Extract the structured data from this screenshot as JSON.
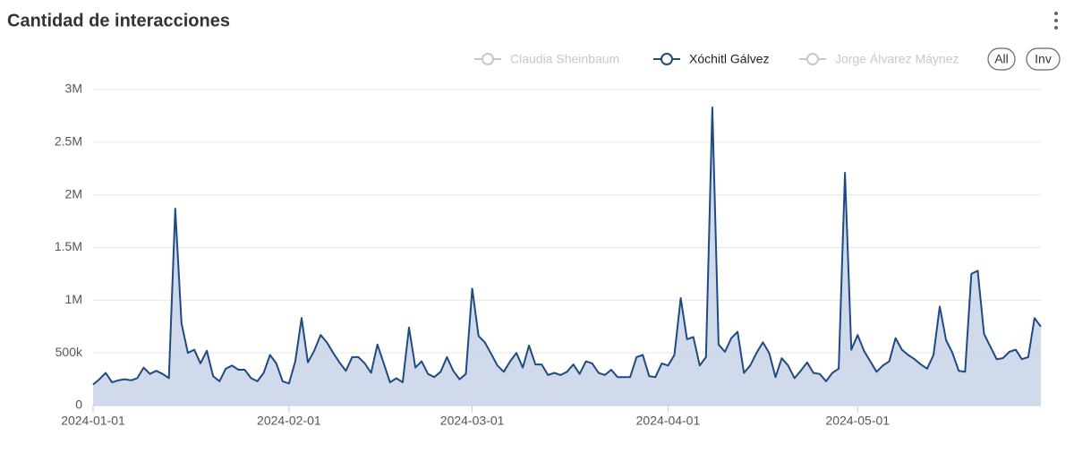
{
  "chart_data": {
    "type": "area",
    "title": "Cantidad de interacciones",
    "series": [
      {
        "name": "Claudia Sheinbaum",
        "visible": false
      },
      {
        "name": "Xóchitl Gálvez",
        "visible": true,
        "color": "#1f4a82",
        "fill": "#c9d3e8",
        "values": [
          200000,
          250000,
          310000,
          220000,
          240000,
          250000,
          240000,
          260000,
          360000,
          300000,
          330000,
          300000,
          260000,
          1870000,
          780000,
          500000,
          530000,
          400000,
          520000,
          280000,
          230000,
          350000,
          380000,
          340000,
          340000,
          260000,
          230000,
          310000,
          480000,
          400000,
          230000,
          210000,
          420000,
          830000,
          410000,
          520000,
          670000,
          600000,
          500000,
          410000,
          330000,
          460000,
          460000,
          400000,
          310000,
          580000,
          400000,
          220000,
          260000,
          220000,
          740000,
          360000,
          420000,
          300000,
          270000,
          320000,
          460000,
          330000,
          250000,
          300000,
          1110000,
          660000,
          600000,
          490000,
          380000,
          320000,
          420000,
          500000,
          360000,
          570000,
          390000,
          390000,
          290000,
          310000,
          290000,
          320000,
          390000,
          300000,
          420000,
          400000,
          310000,
          290000,
          340000,
          270000,
          270000,
          270000,
          460000,
          480000,
          280000,
          270000,
          400000,
          380000,
          480000,
          1020000,
          630000,
          650000,
          380000,
          460000,
          2830000,
          580000,
          510000,
          640000,
          700000,
          310000,
          380000,
          500000,
          600000,
          500000,
          270000,
          450000,
          380000,
          260000,
          330000,
          410000,
          310000,
          300000,
          230000,
          310000,
          350000,
          2210000,
          530000,
          670000,
          520000,
          420000,
          320000,
          380000,
          420000,
          640000,
          530000,
          480000,
          440000,
          390000,
          350000,
          480000,
          940000,
          620000,
          500000,
          330000,
          320000,
          1250000,
          1280000,
          680000,
          560000,
          440000,
          450000,
          510000,
          530000,
          440000,
          460000,
          830000,
          750000
        ]
      },
      {
        "name": "Jorge Álvarez Máynez",
        "visible": false
      }
    ],
    "x": [
      "2024-01-01",
      "2024-01-02",
      "2024-01-03",
      "2024-01-04",
      "2024-01-05",
      "2024-01-06",
      "2024-01-07",
      "2024-01-08",
      "2024-01-09",
      "2024-01-10",
      "2024-01-11",
      "2024-01-12",
      "2024-01-13",
      "2024-01-14",
      "2024-01-15",
      "2024-01-16",
      "2024-01-17",
      "2024-01-18",
      "2024-01-19",
      "2024-01-20",
      "2024-01-21",
      "2024-01-22",
      "2024-01-23",
      "2024-01-24",
      "2024-01-25",
      "2024-01-26",
      "2024-01-27",
      "2024-01-28",
      "2024-01-29",
      "2024-01-30",
      "2024-01-31",
      "2024-02-01",
      "2024-02-02",
      "2024-02-03",
      "2024-02-04",
      "2024-02-05",
      "2024-02-06",
      "2024-02-07",
      "2024-02-08",
      "2024-02-09",
      "2024-02-10",
      "2024-02-11",
      "2024-02-12",
      "2024-02-13",
      "2024-02-14",
      "2024-02-15",
      "2024-02-16",
      "2024-02-17",
      "2024-02-18",
      "2024-02-19",
      "2024-02-20",
      "2024-02-21",
      "2024-02-22",
      "2024-02-23",
      "2024-02-24",
      "2024-02-25",
      "2024-02-26",
      "2024-02-27",
      "2024-02-28",
      "2024-02-29",
      "2024-03-01",
      "2024-03-02",
      "2024-03-03",
      "2024-03-04",
      "2024-03-05",
      "2024-03-06",
      "2024-03-07",
      "2024-03-08",
      "2024-03-09",
      "2024-03-10",
      "2024-03-11",
      "2024-03-12",
      "2024-03-13",
      "2024-03-14",
      "2024-03-15",
      "2024-03-16",
      "2024-03-17",
      "2024-03-18",
      "2024-03-19",
      "2024-03-20",
      "2024-03-21",
      "2024-03-22",
      "2024-03-23",
      "2024-03-24",
      "2024-03-25",
      "2024-03-26",
      "2024-03-27",
      "2024-03-28",
      "2024-03-29",
      "2024-03-30",
      "2024-03-31",
      "2024-04-01",
      "2024-04-02",
      "2024-04-03",
      "2024-04-04",
      "2024-04-05",
      "2024-04-06",
      "2024-04-07",
      "2024-04-08",
      "2024-04-09",
      "2024-04-10",
      "2024-04-11",
      "2024-04-12",
      "2024-04-13",
      "2024-04-14",
      "2024-04-15",
      "2024-04-16",
      "2024-04-17",
      "2024-04-18",
      "2024-04-19",
      "2024-04-20",
      "2024-04-21",
      "2024-04-22",
      "2024-04-23",
      "2024-04-24",
      "2024-04-25",
      "2024-04-26",
      "2024-04-27",
      "2024-04-28",
      "2024-04-29",
      "2024-04-30",
      "2024-05-01",
      "2024-05-02",
      "2024-05-03",
      "2024-05-04",
      "2024-05-05",
      "2024-05-06",
      "2024-05-07",
      "2024-05-08",
      "2024-05-09",
      "2024-05-10",
      "2024-05-11",
      "2024-05-12",
      "2024-05-13",
      "2024-05-14",
      "2024-05-15",
      "2024-05-16",
      "2024-05-17",
      "2024-05-18",
      "2024-05-19",
      "2024-05-20",
      "2024-05-21",
      "2024-05-22",
      "2024-05-23",
      "2024-05-24",
      "2024-05-25",
      "2024-05-26",
      "2024-05-27",
      "2024-05-28",
      "2024-05-29",
      "2024-05-30"
    ],
    "xlim": [
      "2024-01-01",
      "2024-05-30"
    ],
    "xticks": [
      "2024-01-01",
      "2024-02-01",
      "2024-03-01",
      "2024-04-01",
      "2024-05-01"
    ],
    "ylim": [
      0,
      3000000
    ],
    "yticks": [
      0,
      {
        "value": 500000,
        "label": "500k"
      },
      {
        "value": 1000000,
        "label": "1M"
      },
      {
        "value": 1500000,
        "label": "1.5M"
      },
      {
        "value": 2000000,
        "label": "2M"
      },
      {
        "value": 2500000,
        "label": "2.5M"
      },
      {
        "value": 3000000,
        "label": "3M"
      }
    ],
    "grid": true,
    "hidden_color": "#c8c8c8",
    "buttons": [
      "All",
      "Inv"
    ]
  }
}
